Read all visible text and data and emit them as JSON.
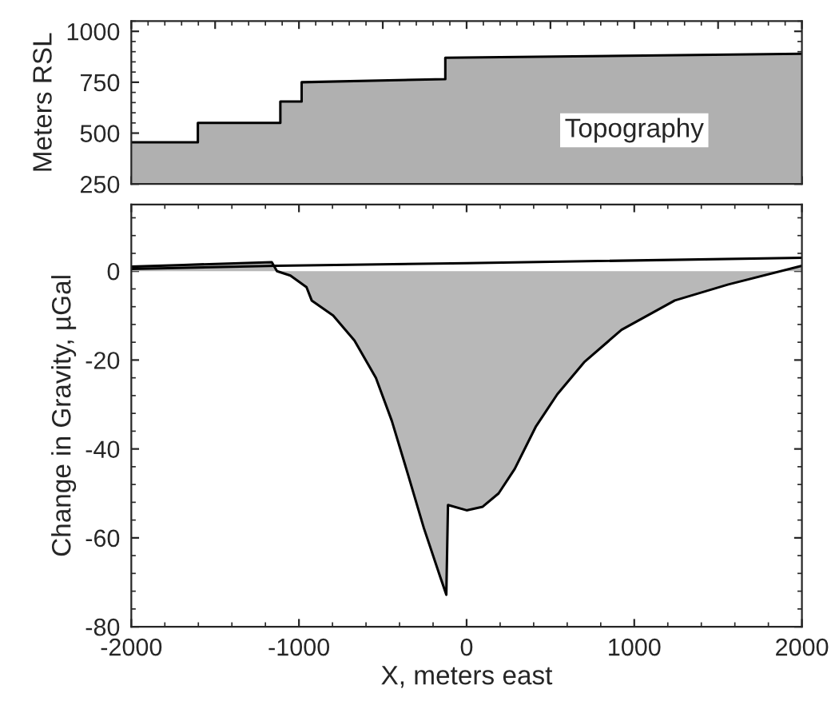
{
  "chart_data": [
    {
      "type": "area",
      "ylabel": "Meters RSL",
      "xlim": [
        -2000,
        2000
      ],
      "ylim": [
        250,
        1050
      ],
      "yticks": [
        250,
        500,
        750,
        1000
      ],
      "tick_labels": "y",
      "x": [
        -2000,
        -1603,
        -1603,
        -1111,
        -1111,
        -984,
        -984,
        -127,
        -127,
        2000
      ],
      "series": [
        {
          "color": "#b0b0b0",
          "values": [
            455,
            455,
            550,
            550,
            655,
            655,
            750,
            765,
            870,
            890
          ]
        }
      ],
      "annotations": [
        "Topography"
      ]
    },
    {
      "type": "area",
      "xlabel": "X, meters east",
      "ylabel": "Change in Gravity, µGal",
      "xlim": [
        -2000,
        2000
      ],
      "ylim": [
        -80,
        15
      ],
      "xticks": [
        -2000,
        -1000,
        0,
        1000,
        2000
      ],
      "yticks": [
        -80,
        -60,
        -40,
        -20,
        0
      ],
      "series": [
        {
          "type": "line",
          "color": "#000000",
          "x": [
            -2000,
            -1130,
            0,
            2000
          ],
          "values": [
            0.5,
            1.2,
            1.8,
            3
          ]
        },
        {
          "color": "#b8b8b8",
          "x": [
            -2000,
            -1688,
            -1162,
            -1131,
            -1051,
            -955,
            -924,
            -796,
            -669,
            -541,
            -446,
            -350,
            -255,
            -159,
            -121,
            -111,
            0,
            96,
            191,
            287,
            414,
            541,
            701,
            924,
            1242,
            1561,
            2000
          ],
          "values": [
            1,
            1.4,
            2,
            0,
            -1,
            -3.6,
            -6.6,
            -10,
            -15.6,
            -24,
            -33.7,
            -45.7,
            -57.8,
            -68.6,
            -72.8,
            -52.6,
            -53.8,
            -53,
            -50,
            -44.5,
            -34.9,
            -27.7,
            -20.5,
            -13.2,
            -6.6,
            -3,
            1.2
          ]
        }
      ]
    }
  ]
}
